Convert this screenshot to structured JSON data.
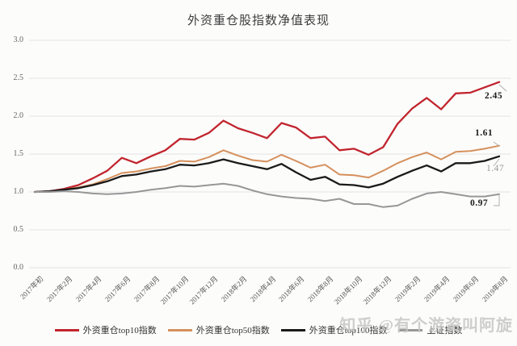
{
  "title": "外资重仓股指数净值表现",
  "watermark": "知乎 @有个游资叫阿旋",
  "chart_data": {
    "type": "line",
    "title": "外资重仓股指数净值表现",
    "grid": true,
    "legend_position": "bottom",
    "ylim": [
      0.0,
      3.0
    ],
    "ytick_labels": [
      "3.0",
      "2.5",
      "2.0",
      "1.5",
      "1.0",
      "0.5",
      "0.0"
    ],
    "yticks": [
      3.0,
      2.5,
      2.0,
      1.5,
      1.0,
      0.5,
      0.0
    ],
    "xtick_labels": [
      "2017年初",
      "2017年2月",
      "2017年4月",
      "2017年6月",
      "2017年8月",
      "2017年10月",
      "2017年12月",
      "2018年2月",
      "2018年4月",
      "2018年6月",
      "2018年8月",
      "2018年10月",
      "2018年12月",
      "2019年2月",
      "2019年4月",
      "2019年6月",
      "2019年8月"
    ],
    "points_per_tick": 2,
    "points": 33,
    "series": [
      {
        "id": "top10",
        "name": "外资重仓top10指数",
        "color": "#c1252e",
        "end_label": "2.45",
        "end_label_color": "#1a1a1a",
        "end_label_bold": true,
        "values": [
          1.0,
          1.01,
          1.04,
          1.09,
          1.18,
          1.28,
          1.45,
          1.38,
          1.47,
          1.55,
          1.7,
          1.69,
          1.78,
          1.94,
          1.84,
          1.78,
          1.71,
          1.91,
          1.85,
          1.71,
          1.73,
          1.55,
          1.57,
          1.49,
          1.59,
          1.9,
          2.1,
          2.24,
          2.09,
          2.3,
          2.31,
          2.38,
          2.45
        ]
      },
      {
        "id": "top50",
        "name": "外资重仓top50指数",
        "color": "#d5905c",
        "end_label": "1.61",
        "end_label_color": "#1a1a1a",
        "end_label_bold": true,
        "values": [
          1.0,
          1.01,
          1.03,
          1.06,
          1.1,
          1.17,
          1.25,
          1.27,
          1.31,
          1.34,
          1.41,
          1.4,
          1.46,
          1.55,
          1.48,
          1.42,
          1.4,
          1.49,
          1.41,
          1.32,
          1.36,
          1.23,
          1.22,
          1.19,
          1.28,
          1.38,
          1.46,
          1.52,
          1.43,
          1.53,
          1.54,
          1.57,
          1.61
        ]
      },
      {
        "id": "top100",
        "name": "外资重仓top100指数",
        "color": "#1a1a1a",
        "end_label": "1.47",
        "end_label_color": "#9b9b9b",
        "end_label_bold": false,
        "values": [
          1.0,
          1.01,
          1.03,
          1.05,
          1.09,
          1.14,
          1.21,
          1.23,
          1.27,
          1.3,
          1.36,
          1.35,
          1.38,
          1.43,
          1.38,
          1.34,
          1.3,
          1.37,
          1.26,
          1.16,
          1.2,
          1.1,
          1.09,
          1.06,
          1.11,
          1.2,
          1.28,
          1.35,
          1.27,
          1.38,
          1.38,
          1.41,
          1.47
        ]
      },
      {
        "id": "sse",
        "name": "上证指数",
        "color": "#979797",
        "end_label": "0.97",
        "end_label_color": "#1a1a1a",
        "end_label_bold": true,
        "values": [
          1.0,
          1.0,
          1.01,
          1.0,
          0.98,
          0.97,
          0.98,
          1.0,
          1.03,
          1.05,
          1.08,
          1.07,
          1.09,
          1.11,
          1.08,
          1.02,
          0.97,
          0.94,
          0.92,
          0.91,
          0.88,
          0.91,
          0.84,
          0.84,
          0.8,
          0.82,
          0.91,
          0.98,
          1.0,
          0.97,
          0.94,
          0.94,
          0.97
        ]
      }
    ],
    "colors": {
      "grid": "#e4e4e4",
      "axis_text": "#555555",
      "title_text": "#3d3d3d"
    }
  }
}
